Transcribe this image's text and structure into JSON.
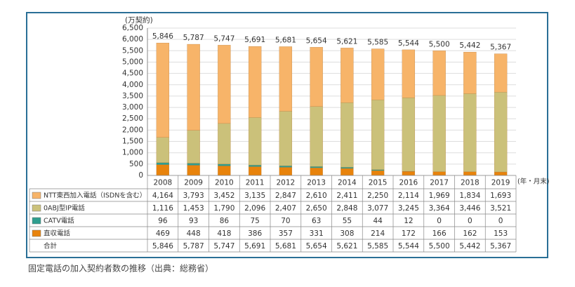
{
  "chart_data": {
    "type": "stacked_bar",
    "y_label": "(万契約)",
    "x_unit": "(年・月末)",
    "caption": "固定電話の加入契約者数の推移（出典：総務省）",
    "categories": [
      "2008",
      "2009",
      "2010",
      "2011",
      "2012",
      "2013",
      "2014",
      "2015",
      "2016",
      "2017",
      "2018",
      "2019"
    ],
    "series": [
      {
        "name": "NTT東西加入電話（ISDNを含む）",
        "color": "#f7b469",
        "values": [
          4164,
          3793,
          3452,
          3135,
          2847,
          2610,
          2411,
          2250,
          2114,
          1969,
          1834,
          1693
        ],
        "value_labels": [
          "4,164",
          "3,793",
          "3,452",
          "3,135",
          "2,847",
          "2,610",
          "2,411",
          "2,250",
          "2,114",
          "1,969",
          "1,834",
          "1,693"
        ]
      },
      {
        "name": "0ABJ型IP電話",
        "color": "#cbc17a",
        "values": [
          1116,
          1453,
          1790,
          2096,
          2407,
          2650,
          2848,
          3077,
          3245,
          3364,
          3446,
          3521
        ],
        "value_labels": [
          "1,116",
          "1,453",
          "1,790",
          "2,096",
          "2,407",
          "2,650",
          "2,848",
          "3,077",
          "3,245",
          "3,364",
          "3,446",
          "3,521"
        ]
      },
      {
        "name": "CATV電話",
        "color": "#2f9e8f",
        "values": [
          96,
          93,
          86,
          75,
          70,
          63,
          55,
          44,
          12,
          0,
          0,
          0
        ],
        "value_labels": [
          "96",
          "93",
          "86",
          "75",
          "70",
          "63",
          "55",
          "44",
          "12",
          "0",
          "0",
          "0"
        ]
      },
      {
        "name": "直収電話",
        "color": "#e8830c",
        "values": [
          469,
          448,
          418,
          386,
          357,
          331,
          308,
          214,
          172,
          166,
          162,
          153
        ],
        "value_labels": [
          "469",
          "448",
          "418",
          "386",
          "357",
          "331",
          "308",
          "214",
          "172",
          "166",
          "162",
          "153"
        ]
      }
    ],
    "total": {
      "name": "合計",
      "values": [
        5846,
        5787,
        5747,
        5691,
        5681,
        5654,
        5621,
        5585,
        5544,
        5500,
        5442,
        5367
      ],
      "value_labels": [
        "5,846",
        "5,787",
        "5,747",
        "5,691",
        "5,681",
        "5,654",
        "5,621",
        "5,585",
        "5,544",
        "5,500",
        "5,442",
        "5,367"
      ]
    },
    "ylim": [
      0,
      6500
    ],
    "yticks": [
      0,
      500,
      {
        "value": 1000,
        "label": "1,000"
      },
      {
        "value": 1500,
        "label": "1,500"
      },
      {
        "value": 2000,
        "label": "2,000"
      },
      {
        "value": 2500,
        "label": "2,500"
      },
      {
        "value": 3000,
        "label": "3,000"
      },
      {
        "value": 3500,
        "label": "3,500"
      },
      {
        "value": 4000,
        "label": "4,000"
      },
      {
        "value": 4500,
        "label": "4,500"
      },
      {
        "value": 5000,
        "label": "5,000"
      },
      {
        "value": 5500,
        "label": "5,500"
      },
      {
        "value": 6000,
        "label": "6,000"
      },
      {
        "value": 6500,
        "label": "6,500"
      }
    ],
    "grid": true
  }
}
